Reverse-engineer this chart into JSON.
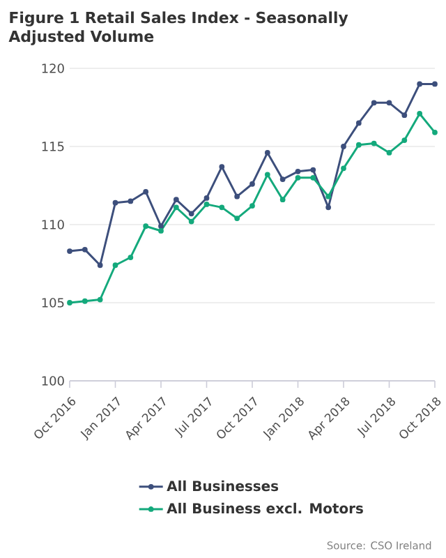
{
  "chart_data": {
    "type": "line",
    "title": "Figure 1 Retail Sales Index - Seasonally Adjusted Volume",
    "x": [
      "2016-10",
      "2016-11",
      "2016-12",
      "2017-01",
      "2017-02",
      "2017-03",
      "2017-04",
      "2017-05",
      "2017-06",
      "2017-07",
      "2017-08",
      "2017-09",
      "2017-10",
      "2017-11",
      "2017-12",
      "2018-01",
      "2018-02",
      "2018-03",
      "2018-04",
      "2018-05",
      "2018-06",
      "2018-07",
      "2018-08",
      "2018-09",
      "2018-10"
    ],
    "series": [
      {
        "name": "All Businesses",
        "color": "#3d4f7c",
        "values": [
          108.3,
          108.4,
          107.4,
          111.4,
          111.5,
          112.1,
          109.9,
          111.6,
          110.7,
          111.7,
          113.7,
          111.8,
          112.6,
          114.6,
          112.9,
          113.4,
          113.5,
          111.1,
          115.0,
          116.5,
          117.8,
          117.8,
          117.0,
          119.0,
          119.0
        ]
      },
      {
        "name": "All Business excl. Motors",
        "color": "#14a97c",
        "values": [
          105.0,
          105.1,
          105.2,
          107.4,
          107.9,
          109.9,
          109.6,
          111.1,
          110.2,
          111.3,
          111.1,
          110.4,
          111.2,
          113.2,
          111.6,
          113.0,
          113.0,
          111.8,
          113.6,
          115.1,
          115.2,
          114.6,
          115.4,
          117.1,
          115.9
        ]
      }
    ],
    "ylim": [
      100,
      120
    ],
    "yticks": [
      100,
      105,
      110,
      115,
      120
    ],
    "xlim": [
      "2016-10",
      "2018-10"
    ],
    "xticks": [
      {
        "value": "2016-10",
        "label": "Oct 2016"
      },
      {
        "value": "2017-01",
        "label": "Jan 2017"
      },
      {
        "value": "2017-04",
        "label": "Apr 2017"
      },
      {
        "value": "2017-07",
        "label": "Jul 2017"
      },
      {
        "value": "2017-10",
        "label": "Oct 2017"
      },
      {
        "value": "2018-01",
        "label": "Jan 2018"
      },
      {
        "value": "2018-04",
        "label": "Apr 2018"
      },
      {
        "value": "2018-07",
        "label": "Jul 2018"
      },
      {
        "value": "2018-10",
        "label": "Oct 2018"
      }
    ],
    "grid": "y",
    "legend": "bottom",
    "marker": "circle",
    "line_style": "solid",
    "annotations": [
      "Source: CSO Ireland"
    ]
  }
}
